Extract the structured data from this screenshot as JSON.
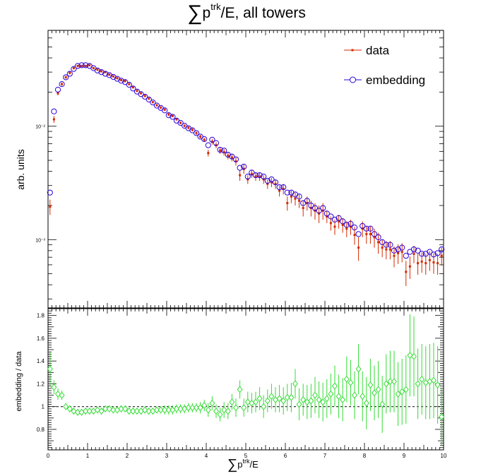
{
  "title": {
    "prefix": "∑",
    "main": "p",
    "superscript": "trk",
    "suffix": "/E, all towers"
  },
  "x_title": {
    "prefix": "∑",
    "main": "p",
    "superscript": "trk",
    "suffix": "/E"
  },
  "colors": {
    "data": "#d42a00",
    "embedding": "#2b00d8",
    "ratio": "#33dd33",
    "axes": "#000000"
  },
  "chart_data": [
    {
      "type": "scatter",
      "panel": "top",
      "xlabel": "",
      "ylabel": "arb. units",
      "yscale": "log",
      "xlim": [
        0,
        10
      ],
      "ylim": [
        0.00025,
        0.07
      ],
      "ytick_labels": [
        "10⁻²",
        "10⁻³"
      ],
      "ytick_values": [
        0.01,
        0.001
      ],
      "legend_position": "top-right",
      "series": [
        {
          "name": "data",
          "marker": "small-square",
          "x": [
            0.05,
            0.15,
            0.25,
            0.35,
            0.45,
            0.55,
            0.65,
            0.75,
            0.85,
            0.95,
            1.05,
            1.15,
            1.25,
            1.35,
            1.45,
            1.55,
            1.65,
            1.75,
            1.85,
            1.95,
            2.05,
            2.15,
            2.25,
            2.35,
            2.45,
            2.55,
            2.65,
            2.75,
            2.85,
            2.95,
            3.05,
            3.15,
            3.25,
            3.35,
            3.45,
            3.55,
            3.65,
            3.75,
            3.85,
            3.95,
            4.05,
            4.15,
            4.25,
            4.35,
            4.45,
            4.55,
            4.65,
            4.75,
            4.85,
            4.95,
            5.05,
            5.15,
            5.25,
            5.35,
            5.45,
            5.55,
            5.65,
            5.75,
            5.85,
            5.95,
            6.05,
            6.15,
            6.25,
            6.35,
            6.45,
            6.55,
            6.65,
            6.75,
            6.85,
            6.95,
            7.05,
            7.15,
            7.25,
            7.35,
            7.45,
            7.55,
            7.65,
            7.75,
            7.85,
            7.95,
            8.05,
            8.15,
            8.25,
            8.35,
            8.45,
            8.55,
            8.65,
            8.75,
            8.85,
            8.95,
            9.05,
            9.15,
            9.25,
            9.35,
            9.45,
            9.55,
            9.65,
            9.75,
            9.85,
            9.95
          ],
          "y": [
            0.00195,
            0.0115,
            0.0195,
            0.0235,
            0.027,
            0.0295,
            0.0325,
            0.034,
            0.034,
            0.034,
            0.0345,
            0.0325,
            0.0315,
            0.0305,
            0.03,
            0.0285,
            0.0275,
            0.0265,
            0.0255,
            0.025,
            0.0235,
            0.022,
            0.0205,
            0.0195,
            0.0185,
            0.0175,
            0.0163,
            0.0153,
            0.0146,
            0.014,
            0.0127,
            0.0123,
            0.0115,
            0.0107,
            0.0101,
            0.0097,
            0.0093,
            0.0087,
            0.0081,
            0.0076,
            0.0058,
            0.0073,
            0.0068,
            0.0061,
            0.0059,
            0.0055,
            0.0053,
            0.0049,
            0.0037,
            0.0042,
            0.0034,
            0.0038,
            0.0036,
            0.0036,
            0.0034,
            0.0031,
            0.0032,
            0.0031,
            0.0027,
            0.0028,
            0.0021,
            0.0024,
            0.0023,
            0.0022,
            0.0019,
            0.0021,
            0.0019,
            0.0018,
            0.0017,
            0.0018,
            0.0016,
            0.0014,
            0.0013,
            0.00145,
            0.00135,
            0.00125,
            0.0013,
            0.0011,
            0.00085,
            0.00125,
            0.00112,
            0.00112,
            0.00105,
            0.00095,
            0.00085,
            0.00082,
            0.00082,
            0.00072,
            0.00076,
            0.00078,
            0.00052,
            0.00058,
            0.00075,
            0.00062,
            0.00064,
            0.00062,
            0.00066,
            0.00063,
            0.00062,
            0.00072
          ],
          "error_low": [
            0.0003,
            0.0008,
            0.0008,
            0.0008,
            0.0008,
            0.0008,
            0.0008,
            0.0008,
            0.0008,
            0.0008,
            0.0008,
            0.0008,
            0.0007,
            0.0007,
            0.0007,
            0.0007,
            0.0006,
            0.0006,
            0.0006,
            0.0006,
            0.0006,
            0.0005,
            0.0005,
            0.0005,
            0.0005,
            0.0004,
            0.0004,
            0.0004,
            0.0004,
            0.0004,
            0.0004,
            0.0003,
            0.0003,
            0.0003,
            0.0003,
            0.0003,
            0.0003,
            0.0003,
            0.0003,
            0.0003,
            0.0004,
            0.0004,
            0.0004,
            0.0004,
            0.0004,
            0.0004,
            0.0004,
            0.0004,
            0.0004,
            0.0004,
            0.0003,
            0.0003,
            0.0003,
            0.0003,
            0.0003,
            0.0003,
            0.0003,
            0.0003,
            0.0003,
            0.0003,
            0.0003,
            0.0003,
            0.0003,
            0.0003,
            0.0003,
            0.0003,
            0.0003,
            0.0003,
            0.0003,
            0.0003,
            0.0002,
            0.0002,
            0.0002,
            0.0002,
            0.0002,
            0.0002,
            0.0002,
            0.0002,
            0.0002,
            0.0002,
            0.0002,
            0.0002,
            0.0002,
            0.0002,
            0.00015,
            0.00015,
            0.00015,
            0.00015,
            0.00015,
            0.00015,
            0.00013,
            0.00013,
            0.00013,
            0.00013,
            0.00013,
            0.00013,
            0.00013,
            0.00013,
            0.00013,
            0.00013
          ]
        },
        {
          "name": "embedding",
          "marker": "open-circle",
          "x": [
            0.05,
            0.15,
            0.25,
            0.35,
            0.45,
            0.55,
            0.65,
            0.75,
            0.85,
            0.95,
            1.05,
            1.15,
            1.25,
            1.35,
            1.45,
            1.55,
            1.65,
            1.75,
            1.85,
            1.95,
            2.05,
            2.15,
            2.25,
            2.35,
            2.45,
            2.55,
            2.65,
            2.75,
            2.85,
            2.95,
            3.05,
            3.15,
            3.25,
            3.35,
            3.45,
            3.55,
            3.65,
            3.75,
            3.85,
            3.95,
            4.05,
            4.15,
            4.25,
            4.35,
            4.45,
            4.55,
            4.65,
            4.75,
            4.85,
            4.95,
            5.05,
            5.15,
            5.25,
            5.35,
            5.45,
            5.55,
            5.65,
            5.75,
            5.85,
            5.95,
            6.05,
            6.15,
            6.25,
            6.35,
            6.45,
            6.55,
            6.65,
            6.75,
            6.85,
            6.95,
            7.05,
            7.15,
            7.25,
            7.35,
            7.45,
            7.55,
            7.65,
            7.75,
            7.85,
            7.95,
            8.05,
            8.15,
            8.25,
            8.35,
            8.45,
            8.55,
            8.65,
            8.75,
            8.85,
            8.95,
            9.05,
            9.15,
            9.25,
            9.35,
            9.45,
            9.55,
            9.65,
            9.75,
            9.85,
            9.95
          ],
          "y": [
            0.0026,
            0.0135,
            0.021,
            0.0235,
            0.027,
            0.029,
            0.032,
            0.034,
            0.0345,
            0.0345,
            0.034,
            0.0325,
            0.031,
            0.03,
            0.029,
            0.0282,
            0.0272,
            0.0262,
            0.0252,
            0.0245,
            0.0232,
            0.0215,
            0.0202,
            0.0192,
            0.0182,
            0.0172,
            0.0162,
            0.0152,
            0.0145,
            0.0138,
            0.0125,
            0.0121,
            0.0112,
            0.0107,
            0.0101,
            0.0096,
            0.0092,
            0.0087,
            0.0081,
            0.0077,
            0.0068,
            0.0076,
            0.0071,
            0.0062,
            0.0061,
            0.0056,
            0.0054,
            0.0051,
            0.0043,
            0.0044,
            0.0036,
            0.0039,
            0.0037,
            0.0037,
            0.0036,
            0.0033,
            0.0034,
            0.0032,
            0.0029,
            0.0029,
            0.0026,
            0.0026,
            0.0025,
            0.0024,
            0.0021,
            0.0022,
            0.002,
            0.0019,
            0.0018,
            0.0019,
            0.0017,
            0.0016,
            0.0015,
            0.00155,
            0.00145,
            0.00135,
            0.00138,
            0.00128,
            0.00112,
            0.00132,
            0.00125,
            0.00125,
            0.00112,
            0.00105,
            0.00095,
            0.0009,
            0.0009,
            0.0008,
            0.00082,
            0.00085,
            0.00072,
            0.00078,
            0.00082,
            0.0008,
            0.00075,
            0.00075,
            0.00078,
            0.00074,
            0.00076,
            0.00082
          ]
        }
      ]
    },
    {
      "type": "scatter",
      "panel": "bottom",
      "xlabel": "∑ptrk/E",
      "ylabel": "embedding / data",
      "xlim": [
        0,
        10
      ],
      "ylim": [
        0.62,
        1.86
      ],
      "xtick_labels": [
        "0",
        "1",
        "2",
        "3",
        "4",
        "5",
        "6",
        "7",
        "8",
        "9",
        "10"
      ],
      "ytick_labels": [
        "0.8",
        "1",
        "1.2",
        "1.4",
        "1.6",
        "1.8"
      ],
      "reference_line": 1,
      "series": [
        {
          "name": "",
          "marker": "open-diamond",
          "x": [
            0.05,
            0.15,
            0.25,
            0.35,
            0.45,
            0.55,
            0.65,
            0.75,
            0.85,
            0.95,
            1.05,
            1.15,
            1.25,
            1.35,
            1.45,
            1.55,
            1.65,
            1.75,
            1.85,
            1.95,
            2.05,
            2.15,
            2.25,
            2.35,
            2.45,
            2.55,
            2.65,
            2.75,
            2.85,
            2.95,
            3.05,
            3.15,
            3.25,
            3.35,
            3.45,
            3.55,
            3.65,
            3.75,
            3.85,
            3.95,
            4.05,
            4.15,
            4.25,
            4.35,
            4.45,
            4.55,
            4.65,
            4.75,
            4.85,
            4.95,
            5.05,
            5.15,
            5.25,
            5.35,
            5.45,
            5.55,
            5.65,
            5.75,
            5.85,
            5.95,
            6.05,
            6.15,
            6.25,
            6.35,
            6.45,
            6.55,
            6.65,
            6.75,
            6.85,
            6.95,
            7.05,
            7.15,
            7.25,
            7.35,
            7.45,
            7.55,
            7.65,
            7.75,
            7.85,
            7.95,
            8.05,
            8.15,
            8.25,
            8.35,
            8.45,
            8.55,
            8.65,
            8.75,
            8.85,
            8.95,
            9.05,
            9.15,
            9.25,
            9.35,
            9.45,
            9.55,
            9.65,
            9.75,
            9.85,
            9.95
          ],
          "y": [
            1.33,
            1.17,
            1.11,
            1.1,
            1.0,
            0.98,
            0.96,
            0.95,
            0.95,
            0.96,
            0.96,
            0.96,
            0.97,
            0.96,
            0.98,
            0.98,
            0.97,
            0.97,
            0.98,
            0.98,
            0.96,
            0.96,
            0.96,
            0.96,
            0.97,
            0.96,
            0.96,
            0.97,
            0.97,
            0.97,
            0.97,
            0.97,
            0.98,
            0.98,
            0.98,
            0.99,
            0.99,
            0.99,
            0.99,
            1.01,
            0.97,
            1.03,
            0.96,
            0.93,
            0.97,
            0.96,
            1.04,
            0.99,
            1.15,
            0.99,
            1.04,
            1.03,
            1.04,
            1.07,
            1.0,
            1.05,
            1.09,
            1.06,
            1.07,
            1.05,
            1.08,
            1.08,
            1.2,
            1.02,
            1.06,
            1.04,
            1.05,
            1.1,
            1.06,
            1.04,
            1.07,
            1.11,
            1.18,
            1.09,
            1.06,
            1.24,
            1.21,
            1.1,
            1.33,
            1.09,
            1.03,
            1.19,
            1.12,
            1.15,
            1.02,
            1.2,
            1.22,
            1.22,
            1.11,
            1.13,
            1.15,
            1.45,
            1.44,
            1.2,
            1.24,
            1.21,
            1.22,
            1.23,
            1.19,
            0.91
          ],
          "error": [
            0.15,
            0.06,
            0.05,
            0.04,
            0.03,
            0.03,
            0.03,
            0.03,
            0.03,
            0.03,
            0.03,
            0.03,
            0.03,
            0.03,
            0.03,
            0.03,
            0.03,
            0.03,
            0.03,
            0.03,
            0.03,
            0.03,
            0.03,
            0.03,
            0.03,
            0.03,
            0.03,
            0.03,
            0.03,
            0.04,
            0.04,
            0.04,
            0.04,
            0.04,
            0.04,
            0.04,
            0.04,
            0.04,
            0.05,
            0.05,
            0.06,
            0.06,
            0.06,
            0.06,
            0.07,
            0.07,
            0.07,
            0.08,
            0.08,
            0.08,
            0.09,
            0.09,
            0.09,
            0.1,
            0.1,
            0.1,
            0.11,
            0.11,
            0.12,
            0.12,
            0.12,
            0.13,
            0.13,
            0.14,
            0.14,
            0.15,
            0.15,
            0.16,
            0.16,
            0.17,
            0.17,
            0.18,
            0.18,
            0.19,
            0.19,
            0.2,
            0.2,
            0.21,
            0.22,
            0.22,
            0.23,
            0.23,
            0.24,
            0.25,
            0.25,
            0.26,
            0.27,
            0.27,
            0.28,
            0.29,
            0.3,
            0.36,
            0.35,
            0.31,
            0.31,
            0.32,
            0.33,
            0.33,
            0.34,
            0.25
          ]
        }
      ]
    }
  ]
}
